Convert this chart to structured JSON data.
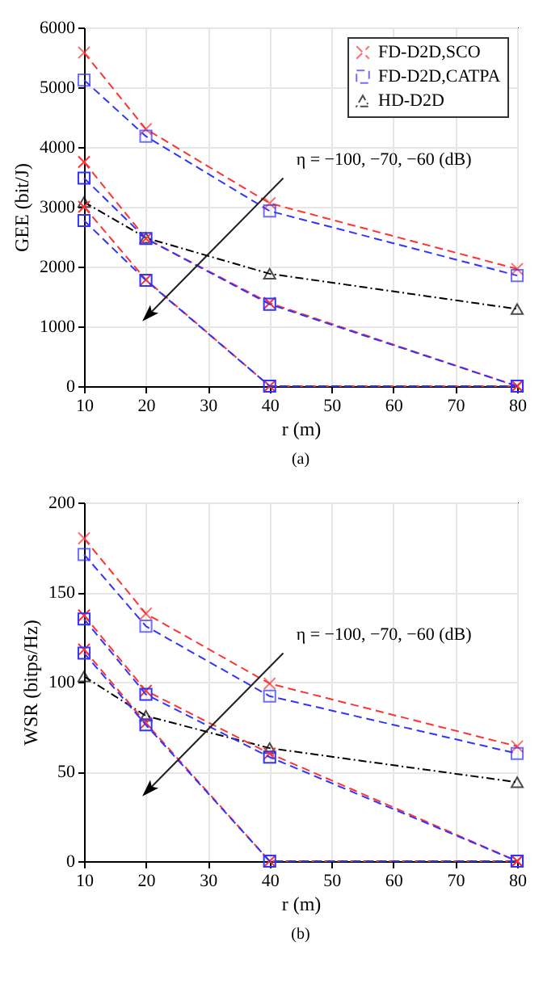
{
  "chart_data": [
    {
      "type": "line",
      "xlabel": "r (m)",
      "ylabel": "GEE (bit/J)",
      "x": [
        10,
        20,
        40,
        80
      ],
      "xlim": [
        10,
        80
      ],
      "xticks": [
        10,
        20,
        30,
        40,
        50,
        60,
        70,
        80
      ],
      "ylim": [
        0,
        6000
      ],
      "yticks": [
        0,
        1000,
        2000,
        3000,
        4000,
        5000,
        6000
      ],
      "grid": true,
      "legend": "top right",
      "title": "(a)",
      "annotations": [
        "η = −100, −70, −60 (dB)"
      ],
      "series": [
        {
          "name": "FD-D2D,SCO",
          "color": "#ff3333",
          "marker": "cross",
          "line_style": "dashed",
          "values": [
            5580,
            4300,
            3060,
            1960
          ]
        },
        {
          "name": "FD-D2D,CATPA",
          "color": "#3333ff",
          "marker": "square",
          "line_style": "dashed",
          "values": [
            5120,
            4180,
            2930,
            1850
          ]
        },
        {
          "name": "HD-D2D",
          "color": "#000000",
          "marker": "triangle",
          "line_style": "dashdot",
          "values": [
            3080,
            2480,
            1880,
            1290
          ]
        },
        {
          "color": "#ff3333",
          "marker": "cross",
          "line_style": "dashed",
          "values": [
            3750,
            2470,
            1390,
            0
          ]
        },
        {
          "color": "#3333ff",
          "marker": "square",
          "line_style": "dashed",
          "values": [
            3480,
            2470,
            1370,
            0
          ]
        },
        {
          "color": "#ff3333",
          "marker": "cross",
          "line_style": "dashed",
          "values": [
            3000,
            1780,
            0,
            0
          ]
        },
        {
          "color": "#3333ff",
          "marker": "square",
          "line_style": "dashed",
          "values": [
            2770,
            1770,
            0,
            0
          ]
        }
      ]
    },
    {
      "type": "line",
      "xlabel": "r (m)",
      "ylabel": "WSR (bitps/Hz)",
      "x": [
        10,
        20,
        40,
        80
      ],
      "xlim": [
        10,
        80
      ],
      "xticks": [
        10,
        20,
        30,
        40,
        50,
        60,
        70,
        80
      ],
      "ylim": [
        0,
        200
      ],
      "yticks": [
        0,
        50,
        100,
        150,
        200
      ],
      "grid": true,
      "legend": "top right",
      "title": "(b)",
      "annotations": [
        "η = −100, −70, −60 (dB)"
      ],
      "series": [
        {
          "name": "FD-D2D,SCO",
          "color": "#ff3333",
          "marker": "cross",
          "line_style": "dashed",
          "values": [
            180,
            138,
            99,
            64
          ]
        },
        {
          "name": "FD-D2D,CATPA",
          "color": "#3333ff",
          "marker": "square",
          "line_style": "dashed",
          "values": [
            171,
            131,
            92,
            60
          ]
        },
        {
          "name": "HD-D2D",
          "color": "#000000",
          "marker": "triangle",
          "line_style": "dashdot",
          "values": [
            103,
            81,
            63,
            44
          ]
        },
        {
          "color": "#ff3333",
          "marker": "cross",
          "line_style": "dashed",
          "values": [
            137,
            95,
            60,
            0
          ]
        },
        {
          "color": "#3333ff",
          "marker": "square",
          "line_style": "dashed",
          "values": [
            135,
            93,
            58,
            0
          ]
        },
        {
          "color": "#ff3333",
          "marker": "cross",
          "line_style": "dashed",
          "values": [
            118,
            77,
            0,
            0
          ]
        },
        {
          "color": "#3333ff",
          "marker": "square",
          "line_style": "dashed",
          "values": [
            116,
            76,
            0,
            0
          ]
        }
      ]
    }
  ]
}
